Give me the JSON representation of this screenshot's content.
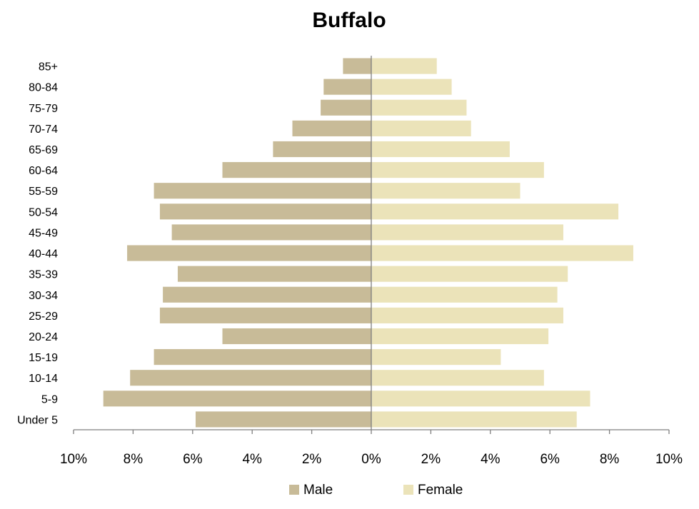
{
  "chart_data": {
    "type": "bar",
    "orientation": "horizontal",
    "title": "Buffalo",
    "categories": [
      "Under 5",
      "5-9",
      "10-14",
      "15-19",
      "20-24",
      "25-29",
      "30-34",
      "35-39",
      "40-44",
      "45-49",
      "50-54",
      "55-59",
      "60-64",
      "65-69",
      "70-74",
      "75-79",
      "80-84",
      "85+"
    ],
    "series": [
      {
        "name": "Male",
        "color": "#c8bb98",
        "values": [
          5.9,
          9.0,
          8.1,
          7.3,
          5.0,
          7.1,
          7.0,
          6.5,
          8.2,
          6.7,
          7.1,
          7.3,
          5.0,
          3.3,
          2.65,
          1.7,
          1.6,
          0.95
        ]
      },
      {
        "name": "Female",
        "color": "#ebe3b9",
        "values": [
          6.9,
          7.35,
          5.8,
          4.35,
          5.95,
          6.45,
          6.25,
          6.6,
          8.8,
          6.45,
          8.3,
          5.0,
          5.8,
          4.65,
          3.35,
          3.2,
          2.7,
          2.2
        ]
      }
    ],
    "xlim": [
      -10,
      10
    ],
    "x_ticks": [
      -10,
      -8,
      -6,
      -4,
      -2,
      0,
      2,
      4,
      6,
      8,
      10
    ],
    "x_tick_labels": [
      "10%",
      "8%",
      "6%",
      "4%",
      "2%",
      "0%",
      "2%",
      "4%",
      "6%",
      "8%",
      "10%"
    ],
    "grid": false,
    "legend_position": "bottom"
  }
}
